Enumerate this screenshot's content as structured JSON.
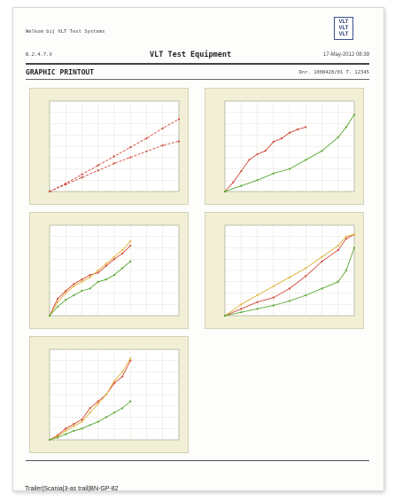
{
  "header": {
    "welcome": "Welkom bij VLT Test Systems",
    "version": "B.2.4.7.V",
    "title": "VLT Test Equipment",
    "date": "17-May-2012  08:39",
    "section": "GRAPHIC PRINTOUT",
    "docnr": "Dnr. 1008428/01 T. 12345",
    "logo": [
      "VLT",
      "VLT",
      "VLT"
    ],
    "logo_color": "#2a3c78"
  },
  "footer": {
    "trailer": "Trailer|Scania|3-as trail|BN-GP-82"
  },
  "chart_data": [
    {
      "type": "line",
      "series": [
        {
          "color": "#d24a3c",
          "x": [
            0,
            1,
            2,
            3,
            4,
            5,
            6,
            7,
            8
          ],
          "y": [
            0,
            8,
            17,
            26,
            35,
            44,
            53,
            63,
            72
          ]
        },
        {
          "color": "#d24a3c",
          "x": [
            0,
            1,
            2,
            3,
            4,
            5,
            6,
            7,
            8
          ],
          "y": [
            0,
            7,
            14,
            21,
            28,
            34,
            40,
            46,
            50
          ]
        }
      ],
      "xlim": [
        0,
        8
      ],
      "ylim": [
        0,
        90
      ]
    },
    {
      "type": "line",
      "series": [
        {
          "color": "#d24a3c",
          "x": [
            0,
            0.5,
            1,
            1.5,
            2,
            2.5,
            3,
            3.5,
            4,
            4.5,
            5
          ],
          "y": [
            0,
            8,
            18,
            28,
            33,
            36,
            44,
            47,
            52,
            55,
            57
          ]
        },
        {
          "color": "#5aa832",
          "x": [
            0,
            1,
            2,
            3,
            4,
            5,
            6,
            7,
            7.5,
            8
          ],
          "y": [
            0,
            5,
            10,
            16,
            20,
            28,
            36,
            48,
            57,
            68
          ]
        }
      ],
      "xlim": [
        0,
        8
      ],
      "ylim": [
        0,
        80
      ]
    },
    {
      "type": "line",
      "series": [
        {
          "color": "#d24a3c",
          "x": [
            0,
            0.5,
            1,
            1.5,
            2,
            2.5,
            3,
            3.5,
            4,
            4.5,
            5
          ],
          "y": [
            0,
            15,
            22,
            28,
            32,
            36,
            38,
            44,
            50,
            55,
            62
          ]
        },
        {
          "color": "#e0b23c",
          "x": [
            0,
            0.5,
            1,
            1.5,
            2,
            2.5,
            3,
            3.5,
            4,
            4.5,
            5
          ],
          "y": [
            0,
            12,
            20,
            26,
            30,
            34,
            40,
            46,
            52,
            58,
            66
          ]
        },
        {
          "color": "#5aa832",
          "x": [
            0,
            0.5,
            1,
            1.5,
            2,
            2.5,
            3,
            3.5,
            4,
            4.5,
            5
          ],
          "y": [
            0,
            8,
            14,
            18,
            22,
            24,
            30,
            32,
            36,
            42,
            48
          ]
        }
      ],
      "xlim": [
        0,
        8
      ],
      "ylim": [
        0,
        80
      ]
    },
    {
      "type": "line",
      "series": [
        {
          "color": "#d24a3c",
          "x": [
            0,
            1,
            2,
            3,
            4,
            5,
            6,
            7,
            7.5,
            8
          ],
          "y": [
            0,
            6,
            12,
            16,
            24,
            35,
            48,
            58,
            68,
            72
          ]
        },
        {
          "color": "#e0b23c",
          "x": [
            0,
            1,
            2,
            3,
            4,
            5,
            6,
            7,
            7.5,
            8
          ],
          "y": [
            0,
            10,
            18,
            26,
            34,
            42,
            52,
            62,
            70,
            72
          ]
        },
        {
          "color": "#5aa832",
          "x": [
            0,
            1,
            2,
            3,
            4,
            5,
            6,
            7,
            7.5,
            8
          ],
          "y": [
            0,
            3,
            6,
            9,
            13,
            18,
            24,
            30,
            40,
            60
          ]
        }
      ],
      "xlim": [
        0,
        8
      ],
      "ylim": [
        0,
        80
      ]
    },
    {
      "type": "line",
      "series": [
        {
          "color": "#d24a3c",
          "x": [
            0,
            0.5,
            1,
            1.5,
            2,
            2.5,
            3,
            3.5,
            4,
            4.5,
            5
          ],
          "y": [
            0,
            4,
            10,
            14,
            18,
            28,
            34,
            40,
            50,
            56,
            70
          ]
        },
        {
          "color": "#e0b23c",
          "x": [
            0,
            0.5,
            1,
            1.5,
            2,
            2.5,
            3,
            3.5,
            4,
            4.5,
            5
          ],
          "y": [
            0,
            3,
            8,
            12,
            16,
            24,
            32,
            40,
            52,
            60,
            72
          ]
        },
        {
          "color": "#5aa832",
          "x": [
            0,
            0.5,
            1,
            1.5,
            2,
            2.5,
            3,
            3.5,
            4,
            4.5,
            5
          ],
          "y": [
            0,
            2,
            5,
            8,
            10,
            13,
            16,
            20,
            24,
            28,
            34
          ]
        }
      ],
      "xlim": [
        0,
        8
      ],
      "ylim": [
        0,
        80
      ]
    }
  ]
}
